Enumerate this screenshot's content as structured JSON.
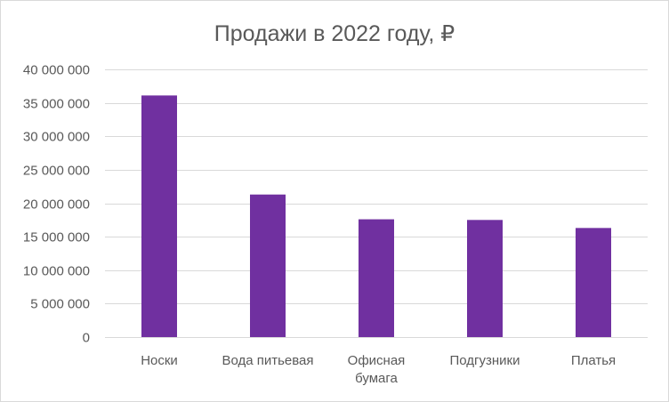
{
  "chart_data": {
    "type": "bar",
    "title": "Продажи в 2022 году, ₽",
    "xlabel": "",
    "ylabel": "",
    "categories": [
      [
        "Носки"
      ],
      [
        "Вода питьевая"
      ],
      [
        "Офисная",
        "бумага"
      ],
      [
        "Подгузники"
      ],
      [
        "Платья"
      ]
    ],
    "values": [
      36100000,
      21300000,
      17600000,
      17500000,
      16300000
    ],
    "ylim": [
      0,
      40000000
    ],
    "y_ticks": [
      {
        "value": 0,
        "label": "0"
      },
      {
        "value": 5000000,
        "label": "5 000 000"
      },
      {
        "value": 10000000,
        "label": "10 000 000"
      },
      {
        "value": 15000000,
        "label": "15 000 000"
      },
      {
        "value": 20000000,
        "label": "20 000 000"
      },
      {
        "value": 25000000,
        "label": "25 000 000"
      },
      {
        "value": 30000000,
        "label": "30 000 000"
      },
      {
        "value": 35000000,
        "label": "35 000 000"
      },
      {
        "value": 40000000,
        "label": "40 000 000"
      }
    ],
    "grid": true,
    "legend": "none",
    "bar_color": "#7030a0"
  }
}
